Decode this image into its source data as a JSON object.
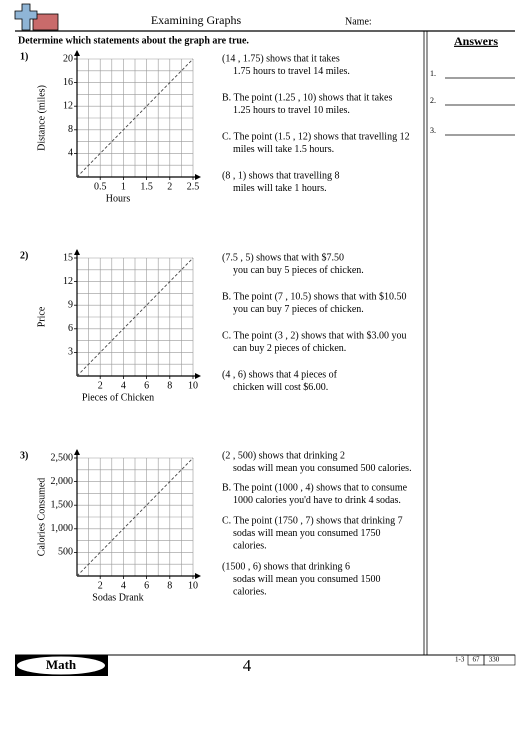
{
  "header": {
    "title": "Examining Graphs",
    "name_label": "Name:"
  },
  "instructions": "Determine which statements about the graph are true.",
  "answers": {
    "title": "Answers",
    "items": [
      "1.",
      "2.",
      "3."
    ]
  },
  "problems": [
    {
      "number": "1)",
      "chart": {
        "type": "line",
        "x_label": "Hours",
        "y_label": "Distance (miles)",
        "xlim": [
          0,
          2.5
        ],
        "xticks": [
          0.5,
          1,
          1.5,
          2,
          2.5
        ],
        "ylim": [
          0,
          20
        ],
        "yticks": [
          4,
          8,
          12,
          16,
          20
        ],
        "x": [
          0,
          2.5
        ],
        "values": [
          0,
          20
        ],
        "grid": true
      },
      "statements": [
        [
          "(14 , 1.75) shows that it takes",
          "1.75 hours to travel 14 miles."
        ],
        [
          "B. The point (1.25 , 10) shows that it takes",
          "1.25 hours to travel 10 miles."
        ],
        [
          "C. The point (1.5 , 12) shows that travelling 12",
          "miles will take 1.5 hours."
        ],
        [
          "(8 , 1) shows that travelling 8",
          "miles will take 1 hours."
        ]
      ]
    },
    {
      "number": "2)",
      "chart": {
        "type": "line",
        "x_label": "Pieces of Chicken",
        "y_label": "Price",
        "xlim": [
          0,
          10
        ],
        "xticks": [
          2,
          4,
          6,
          8,
          10
        ],
        "ylim": [
          0,
          15
        ],
        "yticks": [
          3,
          6,
          9,
          12,
          15
        ],
        "x": [
          0,
          10
        ],
        "values": [
          0,
          15
        ],
        "grid": true
      },
      "statements": [
        [
          "(7.5 , 5) shows that with $7.50",
          "you can buy 5 pieces of chicken."
        ],
        [
          "B. The point (7 , 10.5) shows that with $10.50",
          "you can buy 7 pieces of chicken."
        ],
        [
          "C. The point (3 , 2) shows that with $3.00 you",
          "can buy 2 pieces of chicken."
        ],
        [
          "(4 , 6) shows that 4 pieces of",
          "chicken will cost $6.00."
        ]
      ]
    },
    {
      "number": "3)",
      "chart": {
        "type": "line",
        "x_label": "Sodas Drank",
        "y_label": "Calories Consumed",
        "xlim": [
          0,
          10
        ],
        "xticks": [
          2,
          4,
          6,
          8,
          10
        ],
        "ylim": [
          0,
          2500
        ],
        "yticks": [
          500,
          {
            "value": 1000,
            "label": "1,000"
          },
          {
            "value": 1500,
            "label": "1,500"
          },
          {
            "value": 2000,
            "label": "2,000"
          },
          {
            "value": 2500,
            "label": "2,500"
          }
        ],
        "x": [
          0,
          10
        ],
        "values": [
          0,
          2500
        ],
        "grid": true
      },
      "statements": [
        [
          "(2 , 500) shows that drinking 2",
          "sodas will mean you consumed 500 calories."
        ],
        [
          "B. The point (1000 , 4) shows that to consume",
          "1000 calories you'd have to drink 4 sodas."
        ],
        [
          "C. The point (1750 , 7) shows that drinking 7",
          "sodas will mean you consumed 1750",
          "calories."
        ],
        [
          "(1500 , 6) shows that drinking 6",
          "sodas will mean you consumed 1500",
          "calories."
        ]
      ]
    }
  ],
  "footer": {
    "brand": "Math",
    "page": "4",
    "range": "1-3",
    "scores": [
      "67",
      "330"
    ]
  }
}
